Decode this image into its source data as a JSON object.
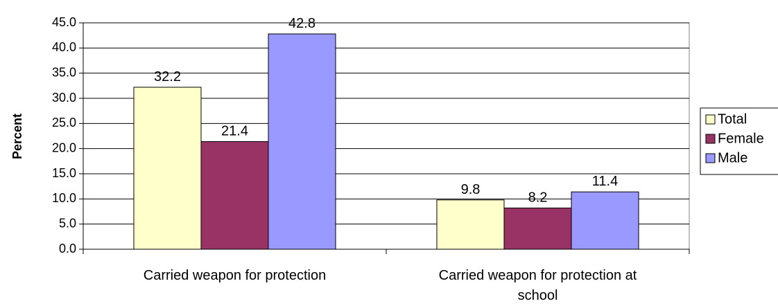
{
  "chart_data": {
    "type": "bar",
    "categories": [
      "Carried weapon for protection",
      "Carried weapon for protection at school"
    ],
    "category_lines": [
      [
        "Carried weapon for protection"
      ],
      [
        "Carried weapon for protection at",
        "school"
      ]
    ],
    "series": [
      {
        "name": "Total",
        "values": [
          32.2,
          9.8
        ],
        "color": "#FFFFCC"
      },
      {
        "name": "Female",
        "values": [
          21.4,
          8.2
        ],
        "color": "#993366"
      },
      {
        "name": "Male",
        "values": [
          42.8,
          11.4
        ],
        "color": "#9999FF"
      }
    ],
    "ylabel": "Percent",
    "ylim": [
      0,
      45
    ],
    "yticks": [
      "0.0",
      "5.0",
      "10.0",
      "15.0",
      "20.0",
      "25.0",
      "30.0",
      "35.0",
      "40.0",
      "45.0"
    ],
    "data_labels": [
      [
        "32.2",
        "21.4",
        "42.8"
      ],
      [
        "9.8",
        "8.2",
        "11.4"
      ]
    ],
    "grid": true,
    "legend": "right"
  }
}
